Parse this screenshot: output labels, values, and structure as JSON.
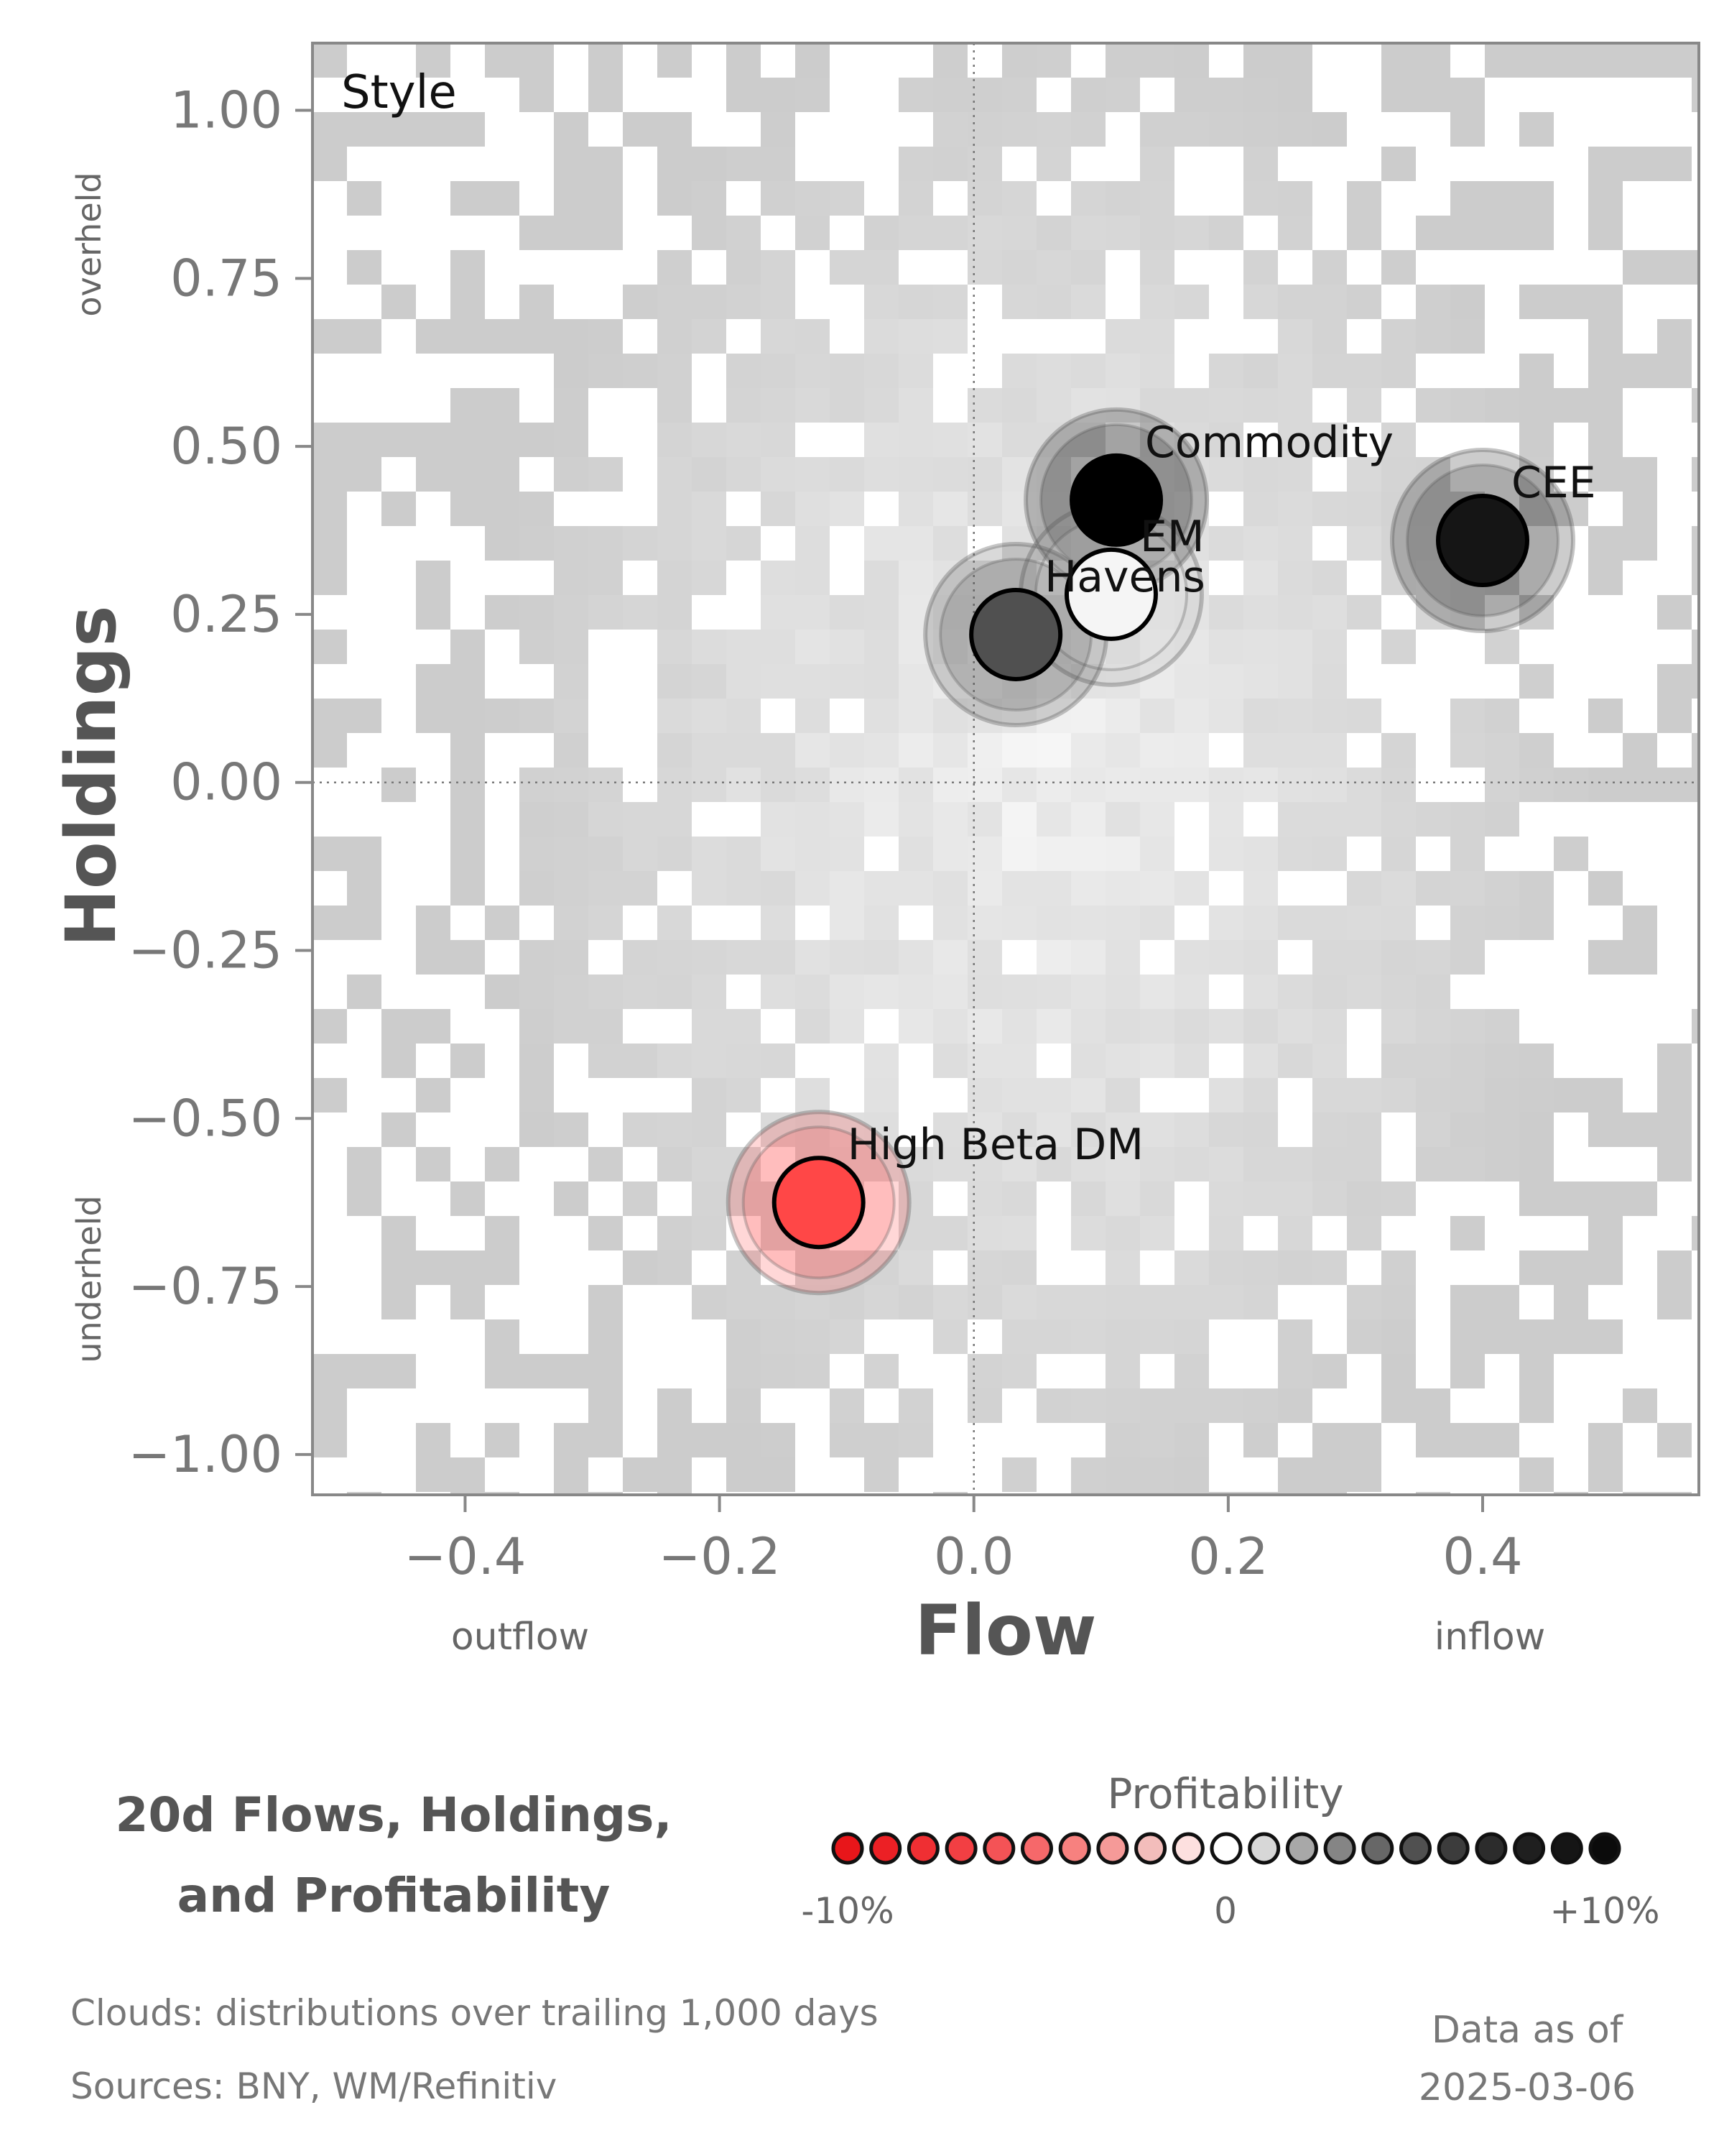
{
  "chart_data": {
    "type": "scatter",
    "panel_label": "Style",
    "xlabel": "Flow",
    "ylabel": "Holdings",
    "x_low_label": "outflow",
    "x_high_label": "inflow",
    "y_low_label": "underheld",
    "y_high_label": "overheld",
    "xlim": [
      -0.52,
      0.57
    ],
    "ylim": [
      -1.06,
      1.1
    ],
    "xticks": [
      -0.4,
      -0.2,
      0.0,
      0.2,
      0.4
    ],
    "xtick_labels": [
      "−0.4",
      "−0.2",
      "0.0",
      "0.2",
      "0.4"
    ],
    "yticks": [
      1.0,
      0.75,
      0.5,
      0.25,
      0.0,
      -0.25,
      -0.5,
      -0.75,
      -1.0
    ],
    "ytick_labels": [
      "1.00",
      "0.75",
      "0.50",
      "0.25",
      "0.00",
      "−0.25",
      "−0.50",
      "−0.75",
      "−1.00"
    ],
    "grid": false,
    "reference_lines": [
      0,
      0
    ],
    "points": [
      {
        "label": "Commodity",
        "x": 0.112,
        "y": 0.42,
        "color": "#000000"
      },
      {
        "label": "CEE",
        "x": 0.4,
        "y": 0.36,
        "color": "#151515"
      },
      {
        "label": "EM",
        "x": 0.108,
        "y": 0.28,
        "color": "#f5f5f5"
      },
      {
        "label": "Havens",
        "x": 0.033,
        "y": 0.22,
        "color": "#505050"
      },
      {
        "label": "High Beta DM",
        "x": -0.122,
        "y": -0.625,
        "color": "#ff4747"
      }
    ]
  },
  "footer": {
    "title_line1": "20d Flows, Holdings,",
    "title_line2": "and Profitability",
    "legend_title": "Profitability",
    "legend_min": "-10%",
    "legend_mid": "0",
    "legend_max": "+10%",
    "legend_colors": [
      "#e8161a",
      "#ec2025",
      "#ef2f33",
      "#f23f43",
      "#f45356",
      "#f6686a",
      "#f7817f",
      "#f59a98",
      "#f3bdbb",
      "#fde0df",
      "#ffffff",
      "#d7d7d7",
      "#a8a8a8",
      "#858585",
      "#676767",
      "#505050",
      "#3c3c3c",
      "#2c2c2c",
      "#1f1f1f",
      "#151515",
      "#0b0b0b"
    ],
    "note_clouds": "Clouds:  distributions over trailing 1,000 days",
    "note_sources": "Sources:  BNY, WM/Refinitiv",
    "asof_line1": "Data as of",
    "asof_line2": "2025-03-06"
  }
}
